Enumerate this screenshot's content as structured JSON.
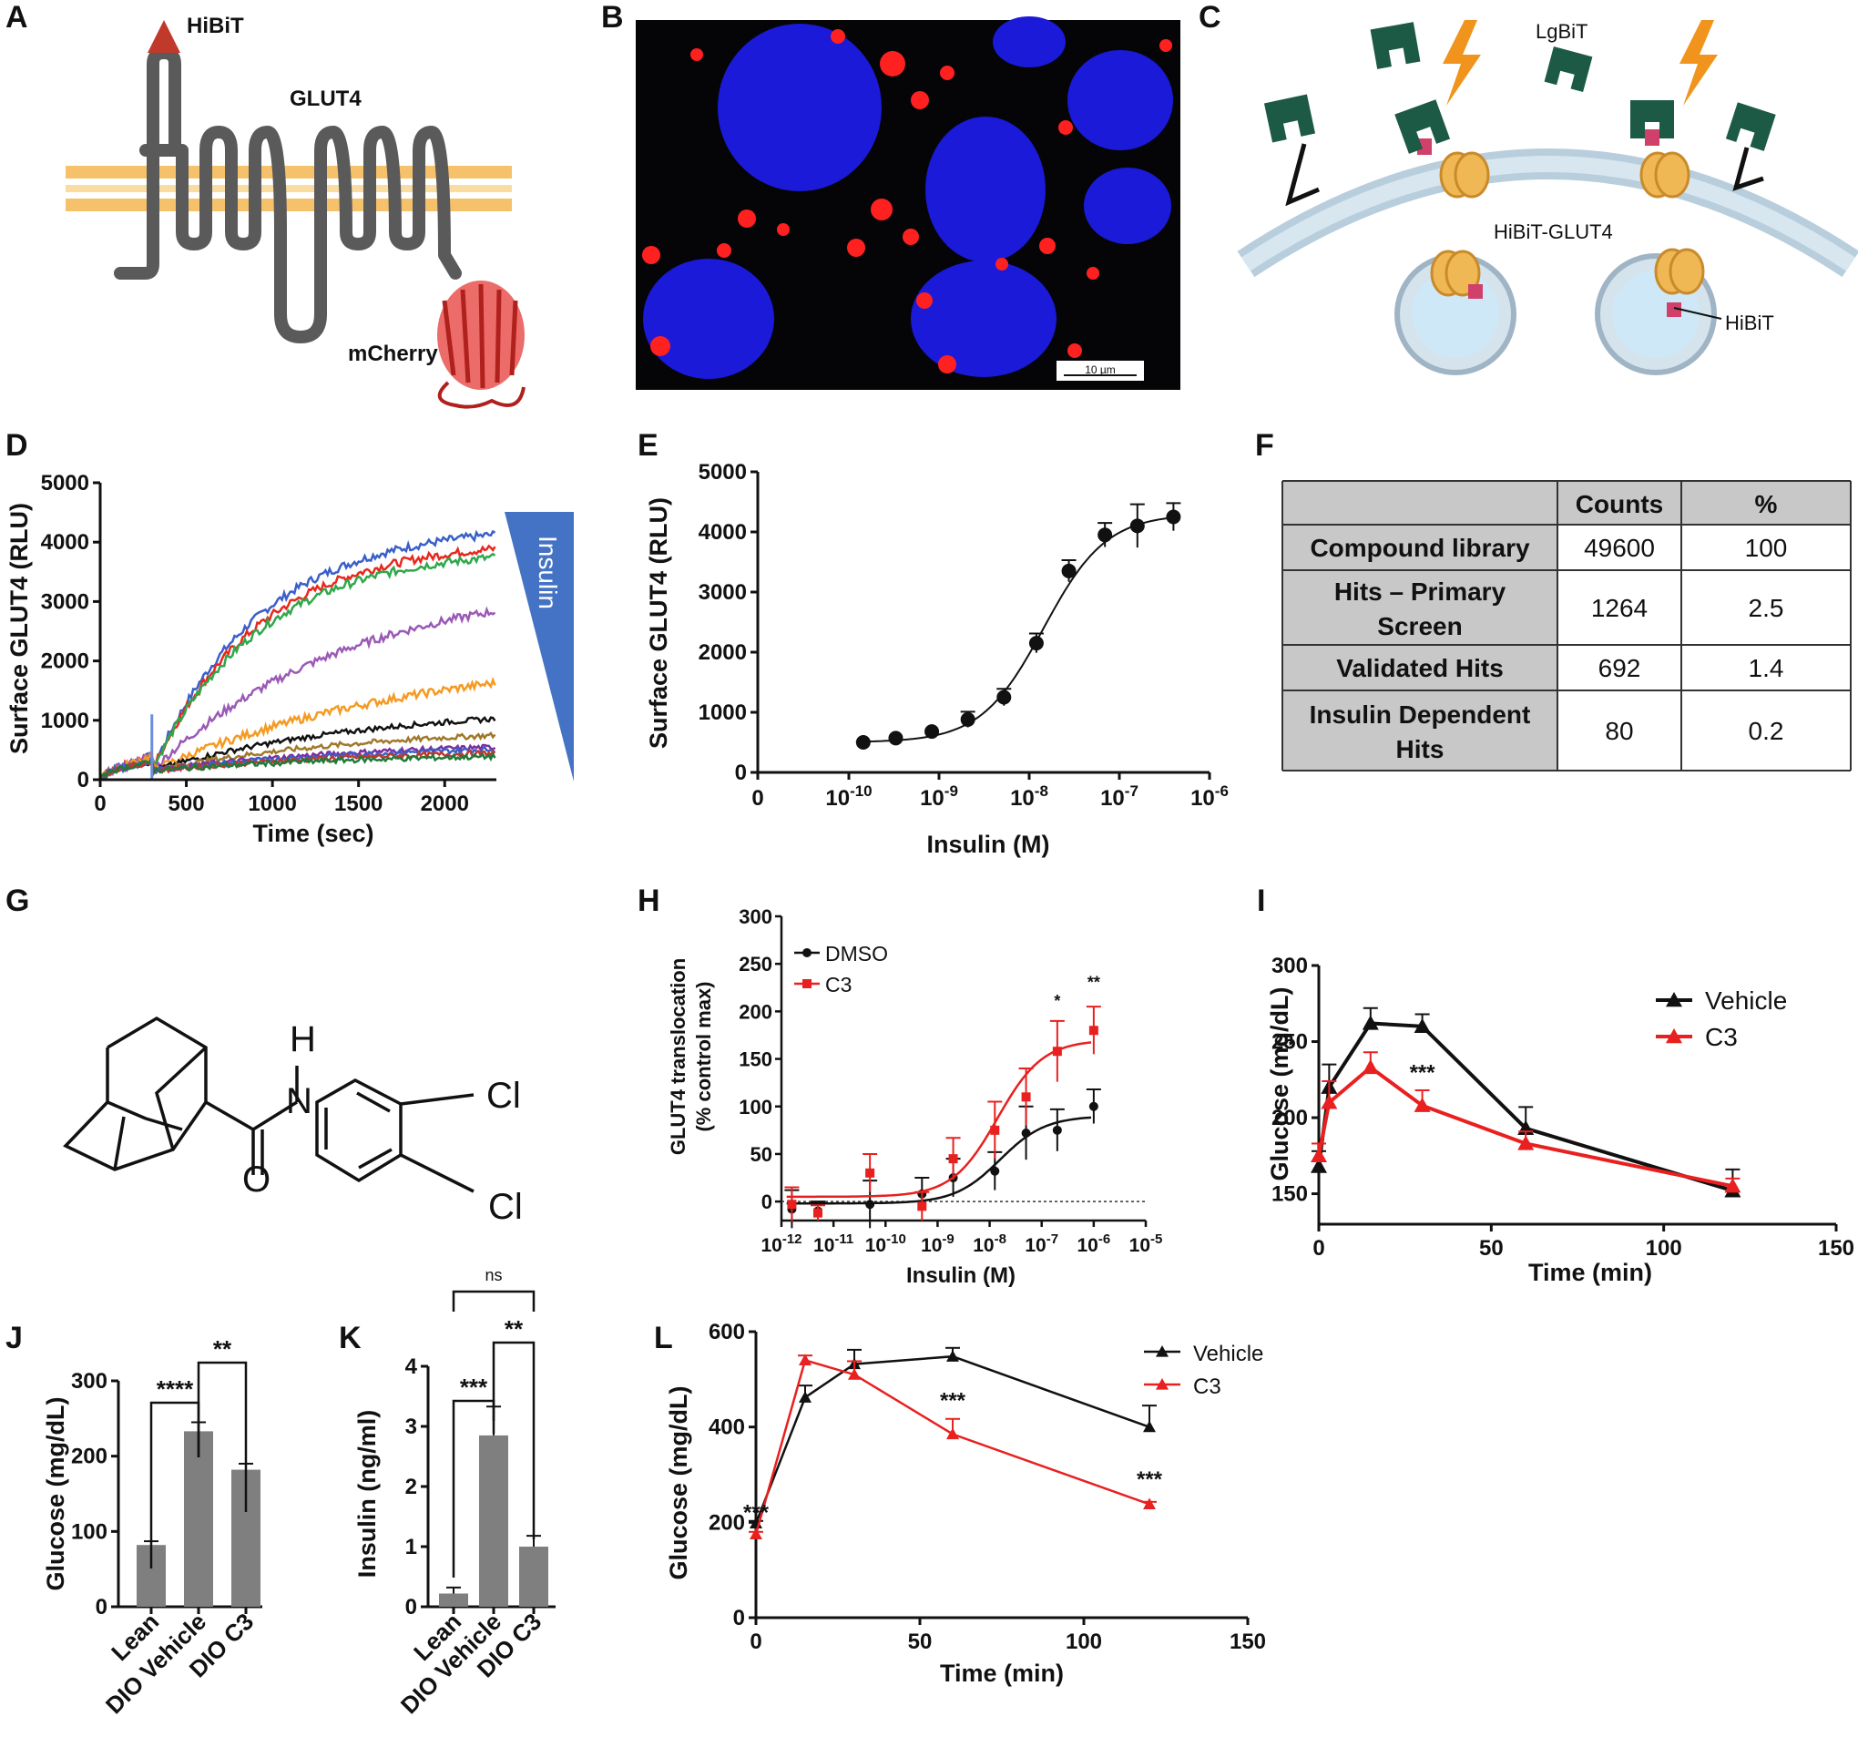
{
  "panels": {
    "A": "A",
    "B": "B",
    "C": "C",
    "D": "D",
    "E": "E",
    "F": "F",
    "G": "G",
    "H": "H",
    "I": "I",
    "J": "J",
    "K": "K",
    "L": "L"
  },
  "panel_a": {
    "hibit": "HiBiT",
    "glut4": "GLUT4",
    "mcherry": "mCherry"
  },
  "panel_b": {
    "scale_bar": "10 µm"
  },
  "panel_c": {
    "lgbit": "LgBiT",
    "hibit_glut4": "HiBiT-GLUT4",
    "hibit": "HiBiT"
  },
  "panel_g": {
    "atoms": {
      "h": "H",
      "n": "N",
      "o": "O",
      "cl1": "Cl",
      "cl2": "Cl"
    }
  },
  "table": {
    "headers": [
      "",
      "Counts",
      "%"
    ],
    "rows": [
      {
        "label": [
          "Compound library"
        ],
        "counts": "49600",
        "pct": "100"
      },
      {
        "label": [
          "Hits – Primary",
          "Screen"
        ],
        "counts": "1264",
        "pct": "2.5"
      },
      {
        "label": [
          "Validated Hits"
        ],
        "counts": "692",
        "pct": "1.4"
      },
      {
        "label": [
          "Insulin Dependent",
          "Hits"
        ],
        "counts": "80",
        "pct": "0.2"
      }
    ],
    "colors": {
      "label_bg": "#c8c8c8",
      "header_bg": "#c8c8c8"
    }
  },
  "colors": {
    "black": "#111111",
    "red": "#e8201f",
    "bar": "#7f7f7f",
    "blue_tri": "#4472c4"
  },
  "chart_data": [
    {
      "id": "D",
      "type": "line",
      "xlabel": "Time (sec)",
      "ylabel": "Surface GLUT4 (RLU)",
      "xlim": [
        0,
        2300
      ],
      "ylim": [
        0,
        5000
      ],
      "xticks": [
        0,
        500,
        1000,
        1500,
        2000
      ],
      "yticks": [
        0,
        1000,
        2000,
        3000,
        4000,
        5000
      ],
      "gradient_label": "Insulin",
      "series": [
        {
          "color": "#3a5fc8",
          "plateau": 4300,
          "rate": 1.0
        },
        {
          "color": "#e8281f",
          "plateau": 4050,
          "rate": 1.0
        },
        {
          "color": "#2ea84a",
          "plateau": 3900,
          "rate": 1.0
        },
        {
          "color": "#9b59b6",
          "plateau": 3400,
          "rate": 0.55
        },
        {
          "color": "#f59a23",
          "plateau": 2200,
          "rate": 0.4
        },
        {
          "color": "#111111",
          "plateau": 1250,
          "rate": 0.5
        },
        {
          "color": "#a0782a",
          "plateau": 900,
          "rate": 0.5
        },
        {
          "color": "#7b2fa0",
          "plateau": 650,
          "rate": 0.5
        },
        {
          "color": "#3a5fc8",
          "plateau": 600,
          "rate": 0.5
        },
        {
          "color": "#c0392b",
          "plateau": 520,
          "rate": 0.5
        },
        {
          "color": "#1f7a3a",
          "plateau": 450,
          "rate": 0.5
        }
      ]
    },
    {
      "id": "E",
      "type": "scatter",
      "xlabel": "Insulin (M)",
      "ylabel": "Surface GLUT4 (RLU)",
      "ylim": [
        0,
        5000
      ],
      "yticks": [
        0,
        1000,
        2000,
        3000,
        4000,
        5000
      ],
      "xtick_labels": [
        "0",
        "10",
        "10",
        "10",
        "10",
        "10"
      ],
      "xtick_exps": [
        "",
        "-10",
        "-9",
        "-8",
        "-7",
        "-6"
      ],
      "points": [
        {
          "logx": -10.8,
          "y": 500,
          "err": 0
        },
        {
          "logx": -10.35,
          "y": 570,
          "err": 0
        },
        {
          "logx": -9.85,
          "y": 680,
          "err": 0
        },
        {
          "logx": -9.35,
          "y": 880,
          "err": 130
        },
        {
          "logx": -8.85,
          "y": 1250,
          "err": 140
        },
        {
          "logx": -8.4,
          "y": 2150,
          "err": 160
        },
        {
          "logx": -7.95,
          "y": 3350,
          "err": 180
        },
        {
          "logx": -7.45,
          "y": 3950,
          "err": 200
        },
        {
          "logx": -7.0,
          "y": 4100,
          "err": 360
        },
        {
          "logx": -6.5,
          "y": 4250,
          "err": 230
        }
      ],
      "fit": {
        "bottom": 500,
        "top": 4300,
        "logec50": -8.3,
        "hill": 1.0
      }
    },
    {
      "id": "H",
      "type": "scatter",
      "xlabel": "Insulin (M)",
      "ylabel": [
        "GLUT4 translocation",
        "(% control max)"
      ],
      "ylim": [
        -20,
        300
      ],
      "yticks": [
        0,
        50,
        100,
        150,
        200,
        250,
        300
      ],
      "xtick_exps": [
        "-12",
        "-11",
        "-10",
        "-9",
        "-8",
        "-7",
        "-6",
        "-5"
      ],
      "series": [
        {
          "name": "DMSO",
          "color": "#111111",
          "marker": "circle",
          "points": [
            {
              "logx": -11.8,
              "y": -8,
              "err": 20
            },
            {
              "logx": -11.3,
              "y": -10,
              "err": 10
            },
            {
              "logx": -10.3,
              "y": -3,
              "err": 25
            },
            {
              "logx": -9.3,
              "y": 8,
              "err": 17
            },
            {
              "logx": -8.7,
              "y": 25,
              "err": 20
            },
            {
              "logx": -7.9,
              "y": 32,
              "err": 20
            },
            {
              "logx": -7.3,
              "y": 72,
              "err": 28
            },
            {
              "logx": -6.7,
              "y": 75,
              "err": 22
            },
            {
              "logx": -6.0,
              "y": 100,
              "err": 18
            }
          ],
          "fit": {
            "bottom": -2,
            "top": 90,
            "logec50": -7.8,
            "hill": 1.0
          }
        },
        {
          "name": "C3",
          "color": "#e8201f",
          "marker": "square",
          "points": [
            {
              "logx": -11.8,
              "y": -3,
              "err": 18
            },
            {
              "logx": -11.3,
              "y": -12,
              "err": 8
            },
            {
              "logx": -10.3,
              "y": 30,
              "err": 20
            },
            {
              "logx": -9.3,
              "y": -5,
              "err": 15
            },
            {
              "logx": -8.7,
              "y": 45,
              "err": 22
            },
            {
              "logx": -7.9,
              "y": 75,
              "err": 30
            },
            {
              "logx": -7.3,
              "y": 110,
              "err": 30
            },
            {
              "logx": -6.7,
              "y": 158,
              "err": 32
            },
            {
              "logx": -6.0,
              "y": 180,
              "err": 25
            }
          ],
          "fit": {
            "bottom": 5,
            "top": 170,
            "logec50": -7.85,
            "hill": 1.0
          }
        }
      ],
      "annotations": [
        {
          "logx": -6.7,
          "y": 205,
          "text": "*"
        },
        {
          "logx": -6.0,
          "y": 225,
          "text": "**"
        }
      ]
    },
    {
      "id": "I",
      "type": "line",
      "xlabel": "Time (min)",
      "ylabel": "Glucose (mg/dL)",
      "xlim": [
        0,
        150
      ],
      "ylim": [
        130,
        300
      ],
      "xticks": [
        0,
        50,
        100,
        150
      ],
      "yticks": [
        150,
        200,
        250,
        300
      ],
      "series": [
        {
          "name": "Vehicle",
          "color": "#111111",
          "x": [
            0,
            3,
            15,
            30,
            60,
            120
          ],
          "y": [
            168,
            220,
            262,
            260,
            193,
            152
          ],
          "err": [
            10,
            15,
            10,
            8,
            14,
            14
          ]
        },
        {
          "name": "C3",
          "color": "#e8201f",
          "x": [
            0,
            3,
            15,
            30,
            60,
            120
          ],
          "y": [
            175,
            210,
            233,
            208,
            183,
            155
          ],
          "err": [
            8,
            14,
            10,
            10,
            8,
            5
          ]
        }
      ],
      "annotations": [
        {
          "x": 30,
          "y": 225,
          "text": "***"
        }
      ]
    },
    {
      "id": "J",
      "type": "bar",
      "ylabel": "Glucose (mg/dL)",
      "ylim": [
        0,
        300
      ],
      "yticks": [
        0,
        100,
        200,
        300
      ],
      "categories": [
        "Lean",
        "DIO Vehicle",
        "DIO C3"
      ],
      "values": [
        82,
        233,
        182
      ],
      "err": [
        5,
        12,
        8
      ],
      "brackets": [
        {
          "from": 0,
          "to": 1,
          "text": "****"
        },
        {
          "from": 1,
          "to": 2,
          "text": "**"
        }
      ]
    },
    {
      "id": "K",
      "type": "bar",
      "ylabel": "Insulin (ng/ml)",
      "ylim": [
        0,
        4
      ],
      "yticks": [
        0,
        1,
        2,
        3,
        4
      ],
      "categories": [
        "Lean",
        "DIO Vehicle",
        "DIO C3"
      ],
      "values": [
        0.22,
        2.85,
        1.0
      ],
      "err": [
        0.1,
        0.48,
        0.18
      ],
      "brackets": [
        {
          "from": 0,
          "to": 1,
          "text": "***"
        },
        {
          "from": 1,
          "to": 2,
          "text": "**"
        },
        {
          "from": 0,
          "to": 2,
          "text": "ns"
        }
      ]
    },
    {
      "id": "L",
      "type": "line",
      "xlabel": "Time (min)",
      "ylabel": "Glucose (mg/dL)",
      "xlim": [
        0,
        150
      ],
      "ylim": [
        0,
        600
      ],
      "xticks": [
        0,
        50,
        100,
        150
      ],
      "yticks": [
        0,
        200,
        400,
        600
      ],
      "series": [
        {
          "name": "Vehicle",
          "color": "#111111",
          "x": [
            0,
            15,
            30,
            60,
            120
          ],
          "y": [
            198,
            462,
            532,
            548,
            400
          ],
          "err": [
            5,
            25,
            30,
            18,
            45
          ]
        },
        {
          "name": "C3",
          "color": "#e8201f",
          "x": [
            0,
            15,
            30,
            60,
            120
          ],
          "y": [
            175,
            540,
            510,
            385,
            238
          ],
          "err": [
            5,
            10,
            28,
            32,
            5
          ]
        }
      ],
      "annotations": [
        {
          "x": 0,
          "y": 205,
          "text": "***"
        },
        {
          "x": 60,
          "y": 440,
          "text": "***"
        },
        {
          "x": 120,
          "y": 275,
          "text": "***"
        }
      ]
    }
  ]
}
